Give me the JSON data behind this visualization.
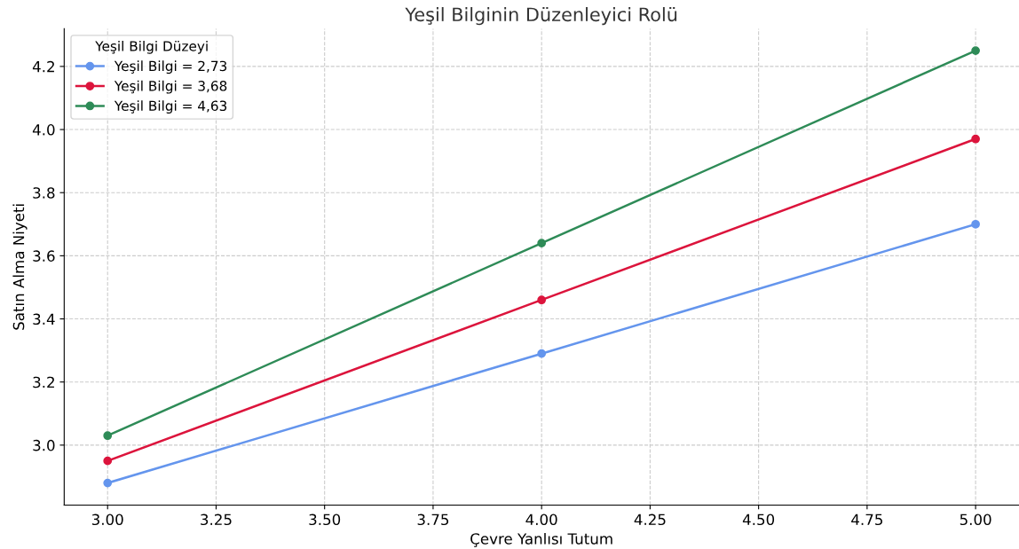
{
  "chart_data": {
    "type": "line",
    "title": "Yeşil Bilginin Düzenleyici Rolü",
    "xlabel": "Çevre Yanlısı Tutum",
    "ylabel": "Satın Alma Niyeti",
    "legend_title": "Yeşil Bilgi Düzeyi",
    "x": [
      3,
      4,
      5
    ],
    "series": [
      {
        "name": "Yeşil Bilgi = 2,73",
        "color": "#6495ed",
        "values": [
          2.88,
          3.29,
          3.7
        ]
      },
      {
        "name": "Yeşil Bilgi = 3,68",
        "color": "#dc143c",
        "values": [
          2.95,
          3.46,
          3.97
        ]
      },
      {
        "name": "Yeşil Bilgi = 4,63",
        "color": "#2e8b57",
        "values": [
          3.03,
          3.64,
          4.25
        ]
      }
    ],
    "xlim": [
      2.9,
      5.1
    ],
    "xticks": [
      {
        "value": 3,
        "label": "3.00"
      },
      {
        "value": 3.25,
        "label": "3.25"
      },
      {
        "value": 3.5,
        "label": "3.50"
      },
      {
        "value": 3.75,
        "label": "3.75"
      },
      {
        "value": 4,
        "label": "4.00"
      },
      {
        "value": 4.25,
        "label": "4.25"
      },
      {
        "value": 4.5,
        "label": "4.50"
      },
      {
        "value": 4.75,
        "label": "4.75"
      },
      {
        "value": 5,
        "label": "5.00"
      }
    ],
    "ylim": [
      2.81,
      4.32
    ],
    "yticks": [
      {
        "value": 3,
        "label": "3.0"
      },
      {
        "value": 3.2,
        "label": "3.2"
      },
      {
        "value": 3.4,
        "label": "3.4"
      },
      {
        "value": 3.6,
        "label": "3.6"
      },
      {
        "value": 3.8,
        "label": "3.8"
      },
      {
        "value": 4,
        "label": "4.0"
      },
      {
        "value": 4.2,
        "label": "4.2"
      }
    ],
    "grid": true,
    "legend": "top left",
    "marker": "circle",
    "line_style": "solid"
  }
}
